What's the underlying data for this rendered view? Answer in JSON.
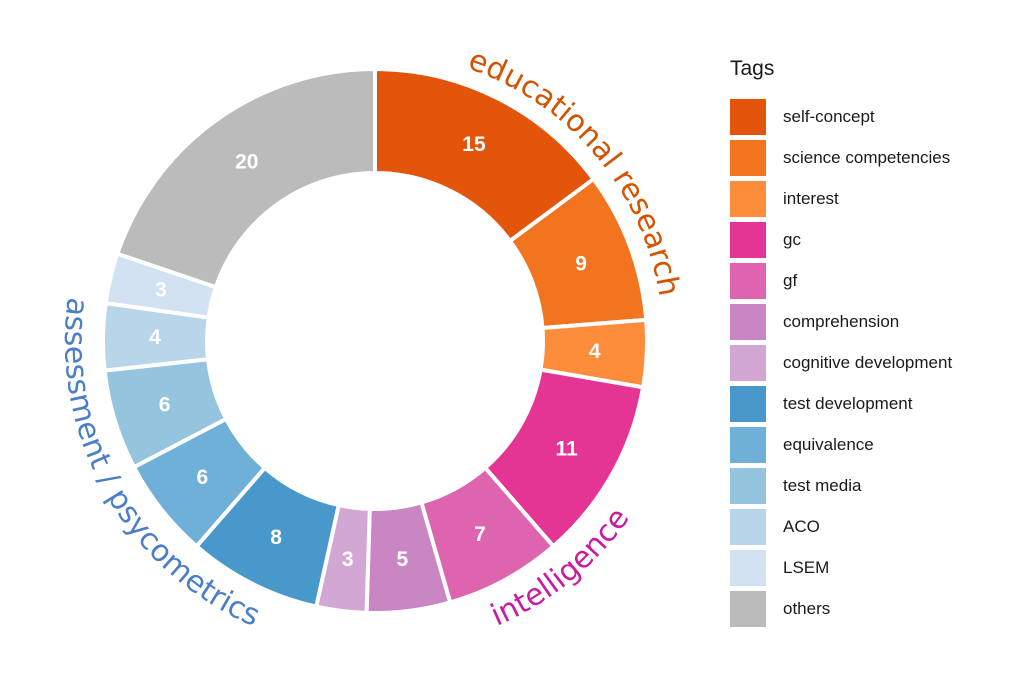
{
  "chart_data": {
    "type": "pie",
    "variant": "donut",
    "slices": [
      {
        "label": "self-concept",
        "value": 15,
        "color": "#e3550a"
      },
      {
        "label": "science competencies",
        "value": 9,
        "color": "#f3741f"
      },
      {
        "label": "interest",
        "value": 4,
        "color": "#fd8c3b"
      },
      {
        "label": "gc",
        "value": 11,
        "color": "#e53594"
      },
      {
        "label": "gf",
        "value": 7,
        "color": "#de64b0"
      },
      {
        "label": "comprehension",
        "value": 5,
        "color": "#c986c3"
      },
      {
        "label": "cognitive development",
        "value": 3,
        "color": "#d2a7d4"
      },
      {
        "label": "test development",
        "value": 8,
        "color": "#4898cb"
      },
      {
        "label": "equivalence",
        "value": 6,
        "color": "#6eb0d8"
      },
      {
        "label": "test media",
        "value": 6,
        "color": "#95c4df"
      },
      {
        "label": "ACO",
        "value": 4,
        "color": "#b8d5ea"
      },
      {
        "label": "LSEM",
        "value": 3,
        "color": "#d2e2f3"
      },
      {
        "label": "others",
        "value": 20,
        "color": "#bbbbbb"
      }
    ],
    "groups": [
      {
        "label": "educational research",
        "color": "#d35400",
        "members": [
          "self-concept",
          "science competencies",
          "interest"
        ]
      },
      {
        "label": "intelligence",
        "color": "#cc1a9e",
        "members": [
          "gc",
          "gf",
          "comprehension"
        ]
      },
      {
        "label": "assessment / psycometrics",
        "color": "#4a7fc8",
        "members": [
          "test development",
          "equivalence",
          "test media",
          "ACO",
          "LSEM"
        ]
      }
    ],
    "legend": {
      "title": "Tags",
      "position": "right"
    }
  }
}
